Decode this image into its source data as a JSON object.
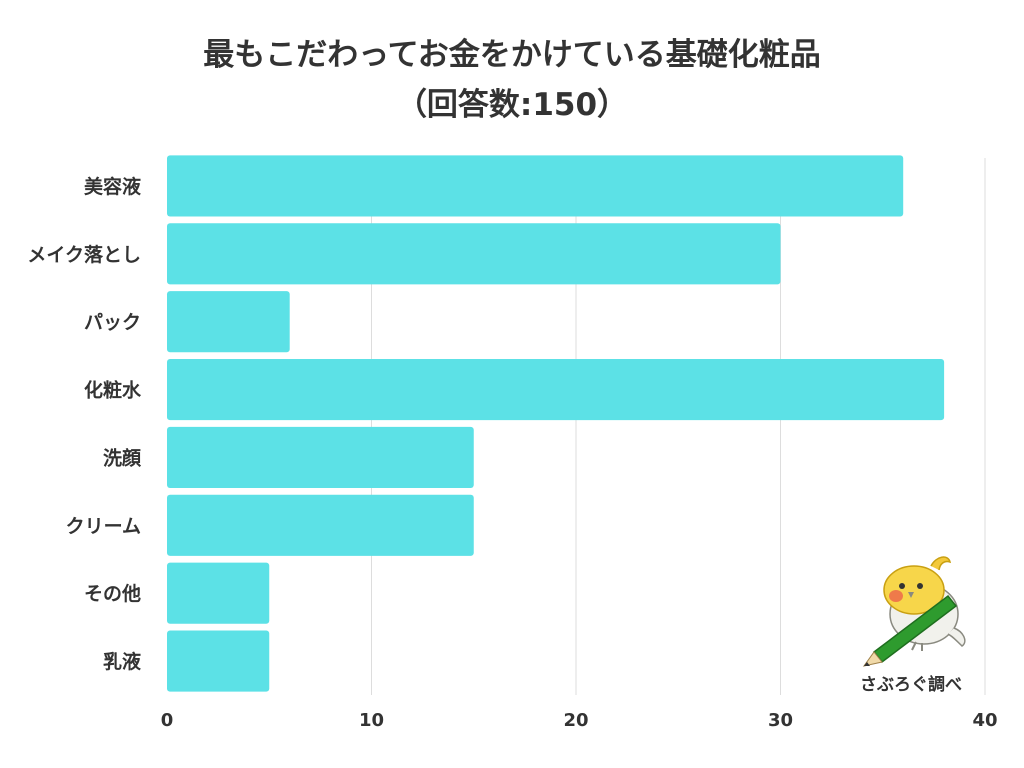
{
  "chart_data": {
    "type": "bar",
    "orientation": "horizontal",
    "title": "最もこだわってお金をかけている基礎化粧品",
    "subtitle": "（回答数:150）",
    "categories": [
      "美容液",
      "メイク落とし",
      "パック",
      "化粧水",
      "洗顔",
      "クリーム",
      "その他",
      "乳液"
    ],
    "values": [
      36,
      30,
      6,
      38,
      15,
      15,
      5,
      5
    ],
    "xlim": [
      0,
      40
    ],
    "xticks": [
      0,
      10,
      20,
      30,
      40
    ],
    "xlabel": "",
    "ylabel": "",
    "grid": true,
    "bar_color": "#5ce1e6"
  },
  "source_credit": "さぶろぐ調べ"
}
